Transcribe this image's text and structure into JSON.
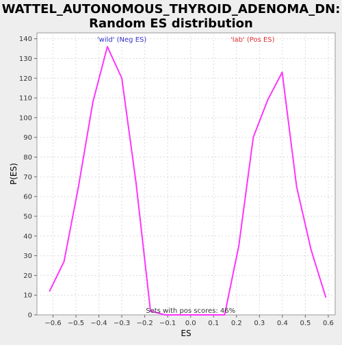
{
  "chart_data": {
    "type": "line",
    "title": "WATTEL_AUTONOMOUS_THYROID_ADENOMA_DN:",
    "subtitle": "Random ES distribution",
    "xlabel": "ES",
    "ylabel": "P(ES)",
    "xlim": [
      -0.67,
      0.63
    ],
    "ylim": [
      0,
      143
    ],
    "xticks": [
      -0.6,
      -0.5,
      -0.4,
      -0.3,
      -0.2,
      -0.1,
      0.0,
      0.1,
      0.2,
      0.3,
      0.4,
      0.5,
      0.6
    ],
    "xtick_labels": [
      "−0.6",
      "−0.5",
      "−0.4",
      "−0.3",
      "−0.2",
      "−0.1",
      "0.0",
      "0.1",
      "0.2",
      "0.3",
      "0.4",
      "0.5",
      "0.6"
    ],
    "yticks": [
      0,
      10,
      20,
      30,
      40,
      50,
      60,
      70,
      80,
      90,
      100,
      110,
      120,
      130,
      140
    ],
    "grid": true,
    "series": [
      {
        "color": "#ff33ff",
        "x": [
          -0.615,
          -0.552,
          -0.489,
          -0.426,
          -0.363,
          -0.3,
          -0.238,
          -0.175,
          -0.112,
          0.148,
          0.21,
          0.273,
          0.336,
          0.399,
          0.462,
          0.525,
          0.589
        ],
        "y": [
          12,
          27,
          65,
          108,
          136,
          120,
          67,
          2,
          0,
          0,
          35,
          90,
          109,
          123,
          65,
          33,
          9
        ]
      }
    ],
    "annotations": [
      {
        "text": "'wild' (Neg ES)",
        "color": "#3333cc",
        "x": -0.3
      },
      {
        "text": "'lab' (Pos ES)",
        "color": "#e03333",
        "x": 0.27
      },
      {
        "text": "Sets with pos scores: 46%",
        "color": "#333333",
        "x": 0.0
      }
    ],
    "colors": {
      "background": "#eeeeee",
      "plot_background": "#ffffff",
      "grid": "#d9d9d9",
      "line": "#ff33ff"
    }
  }
}
